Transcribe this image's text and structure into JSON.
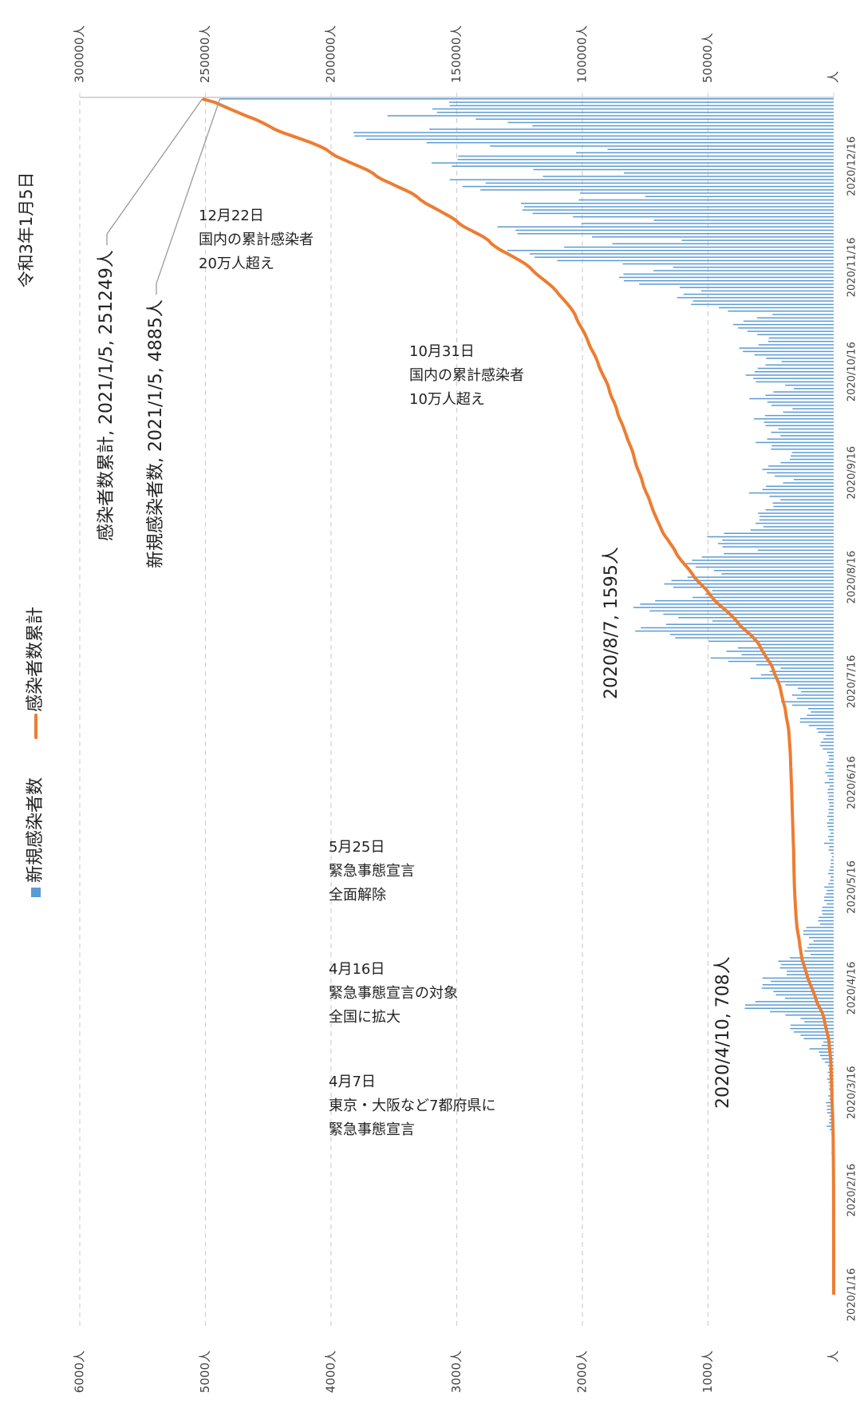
{
  "chart_data": {
    "type": "bar-line",
    "title": "令和3年1月5日",
    "categories": [
      "2020/1/16",
      null,
      null,
      null,
      null,
      null,
      null,
      null,
      null,
      null,
      null,
      null,
      null,
      null,
      null,
      null,
      null,
      null,
      null,
      null,
      null,
      null,
      null,
      null,
      null,
      null,
      null,
      null,
      null,
      null,
      null,
      "2020/2/16",
      null,
      null,
      null,
      null,
      null,
      null,
      null,
      null,
      null,
      null,
      null,
      null,
      null,
      null,
      null,
      null,
      null,
      null,
      null,
      null,
      null,
      null,
      null,
      null,
      null,
      null,
      null,
      null,
      "2020/3/16",
      null,
      null,
      null,
      null,
      null,
      null,
      null,
      null,
      null,
      null,
      null,
      null,
      null,
      null,
      null,
      null,
      null,
      null,
      null,
      null,
      null,
      null,
      null,
      null,
      null,
      null,
      null,
      null,
      null,
      null,
      "2020/4/16",
      null,
      null,
      null,
      null,
      null,
      null,
      null,
      null,
      null,
      null,
      null,
      null,
      null,
      null,
      null,
      null,
      null,
      null,
      null,
      null,
      null,
      null,
      null,
      null,
      null,
      null,
      null,
      null,
      null,
      "2020/5/16",
      null,
      null,
      null,
      null,
      null,
      null,
      null,
      null,
      null,
      null,
      null,
      null,
      null,
      null,
      null,
      null,
      null,
      null,
      null,
      null,
      null,
      null,
      null,
      null,
      null,
      null,
      null,
      null,
      null,
      null,
      "2020/6/16",
      null,
      null,
      null,
      null,
      null,
      null,
      null,
      null,
      null,
      null,
      null,
      null,
      null,
      null,
      null,
      null,
      null,
      null,
      null,
      null,
      null,
      null,
      null,
      null,
      null,
      null,
      null,
      null,
      null,
      "2020/7/16",
      null,
      null,
      null,
      null,
      null,
      null,
      null,
      null,
      null,
      null,
      null,
      null,
      null,
      null,
      null,
      null,
      null,
      null,
      null,
      null,
      null,
      null,
      null,
      null,
      null,
      null,
      null,
      null,
      null,
      null,
      "2020/8/16",
      null,
      null,
      null,
      null,
      null,
      null,
      null,
      null,
      null,
      null,
      null,
      null,
      null,
      null,
      null,
      null,
      null,
      null,
      null,
      null,
      null,
      null,
      null,
      null,
      null,
      null,
      null,
      null,
      null,
      null,
      "2020/9/16",
      null,
      null,
      null,
      null,
      null,
      null,
      null,
      null,
      null,
      null,
      null,
      null,
      null,
      null,
      null,
      null,
      null,
      null,
      null,
      null,
      null,
      null,
      null,
      null,
      null,
      null,
      null,
      null,
      null,
      "2020/10/16",
      null,
      null,
      null,
      null,
      null,
      null,
      null,
      null,
      null,
      null,
      null,
      null,
      null,
      null,
      null,
      null,
      null,
      null,
      null,
      null,
      null,
      null,
      null,
      null,
      null,
      null,
      null,
      null,
      null,
      null,
      "2020/11/16",
      null,
      null,
      null,
      null,
      null,
      null,
      null,
      null,
      null,
      null,
      null,
      null,
      null,
      null,
      null,
      null,
      null,
      null,
      null,
      null,
      null,
      null,
      null,
      null,
      null,
      null,
      null,
      null,
      null,
      "2020/12/16",
      null,
      null,
      null,
      null,
      null,
      null,
      null,
      null,
      null,
      null,
      null,
      null,
      null,
      null,
      null,
      null,
      null,
      null,
      null,
      null
    ],
    "series": [
      {
        "name": "新規感染者数",
        "color": "#5b9bd5",
        "values": [
          1,
          0,
          0,
          0,
          0,
          0,
          0,
          1,
          1,
          0,
          1,
          1,
          2,
          1,
          3,
          2,
          0,
          5,
          1,
          10,
          0,
          0,
          0,
          0,
          1,
          0,
          1,
          3,
          2,
          4,
          0,
          5,
          8,
          3,
          12,
          9,
          7,
          7,
          5,
          8,
          14,
          13,
          18,
          15,
          11,
          12,
          16,
          14,
          19,
          32,
          56,
          39,
          34,
          34,
          52,
          55,
          54,
          62,
          34,
          44,
          13,
          39,
          35,
          42,
          53,
          39,
          48,
          39,
          46,
          71,
          95,
          110,
          119,
          193,
          96,
          82,
          238,
          264,
          318,
          347,
          343,
          234,
          264,
          384,
          507,
          708,
          705,
          624,
          388,
          460,
          480,
          574,
          566,
          501,
          567,
          375,
          374,
          428,
          418,
          442,
          348,
          186,
          233,
          210,
          197,
          162,
          197,
          243,
          242,
          219,
          109,
          124,
          120,
          91,
          94,
          91,
          55,
          76,
          77,
          61,
          55,
          75,
          43,
          30,
          26,
          44,
          36,
          28,
          24,
          25,
          14,
          22,
          40,
          37,
          76,
          36,
          44,
          27,
          39,
          49,
          54,
          38,
          51,
          41,
          42,
          34,
          37,
          45,
          41,
          49,
          47,
          33,
          72,
          39,
          50,
          67,
          40,
          60,
          49,
          37,
          41,
          53,
          87,
          110,
          102,
          82,
          62,
          125,
          136,
          198,
          269,
          267,
          214,
          182,
          204,
          331,
          418,
          292,
          330,
          259,
          286,
          384,
          456,
          664,
          579,
          510,
          422,
          616,
          839,
          980,
          734,
          854,
          762,
          611,
          997,
          1262,
          1302,
          1580,
          1535,
          1333,
          965,
          1237,
          1356,
          1465,
          1595,
          1541,
          1421,
          1123,
          1020,
          968,
          1276,
          1349,
          1292,
          1164,
          893,
          952,
          1099,
          1174,
          1128,
          1050,
          875,
          604,
          886,
          921,
          887,
          1007,
          874,
          662,
          560,
          622,
          592,
          591,
          603,
          542,
          480,
          486,
          424,
          511,
          674,
          568,
          539,
          403,
          318,
          469,
          532,
          568,
          520,
          423,
          349,
          342,
          332,
          499,
          494,
          620,
          530,
          424,
          498,
          441,
          542,
          555,
          634,
          547,
          403,
          328,
          495,
          528,
          671,
          543,
          481,
          318,
          387,
          620,
          640,
          700,
          630,
          605,
          543,
          415,
          538,
          631,
          723,
          752,
          599,
          522,
          516,
          608,
          686,
          761,
          801,
          718,
          610,
          488,
          842,
          914,
          1135,
          1120,
          1247,
          1195,
          1055,
          1225,
          1548,
          1670,
          1708,
          1674,
          1434,
          1278,
          1679,
          2201,
          2380,
          2420,
          2598,
          2145,
          1762,
          1210,
          1923,
          2517,
          2532,
          2676,
          2008,
          1431,
          2075,
          2397,
          2478,
          2464,
          2489,
          2030,
          1501,
          2018,
          2812,
          2954,
          2771,
          3056,
          2315,
          1670,
          2390,
          3039,
          3200,
          2994,
          2988,
          2050,
          1800,
          2735,
          3240,
          3722,
          3814,
          3822,
          3218,
          2399,
          2594,
          2848,
          3551,
          3157,
          3194,
          3056,
          3060,
          4885
        ],
        "value_labels": {
          "85": "2020/4/10, 708人",
          "204": "2020/8/7, 1595人",
          "355": "新規感染者数, 2021/1/5, 4885人"
        }
      },
      {
        "name": "感染者数累計",
        "color": "#ed7d31",
        "axis": "y2",
        "values": [
          1,
          1,
          1,
          1,
          1,
          1,
          1,
          2,
          3,
          3,
          4,
          5,
          7,
          8,
          11,
          13,
          13,
          18,
          19,
          29,
          29,
          29,
          29,
          29,
          30,
          30,
          31,
          34,
          36,
          40,
          40,
          45,
          53,
          56,
          68,
          77,
          84,
          91,
          96,
          104,
          118,
          131,
          149,
          164,
          175,
          187,
          203,
          217,
          236,
          268,
          324,
          363,
          397,
          431,
          483,
          538,
          592,
          654,
          688,
          732,
          745,
          784,
          819,
          861,
          914,
          953,
          1001,
          1040,
          1086,
          1157,
          1252,
          1362,
          1481,
          1674,
          1770,
          1852,
          2090,
          2354,
          2672,
          3019,
          3362,
          3596,
          3860,
          4244,
          4751,
          5459,
          6164,
          6788,
          7176,
          7636,
          8116,
          8690,
          9256,
          9757,
          10324,
          10699,
          11073,
          11501,
          11919,
          12361,
          12709,
          12895,
          13128,
          13338,
          13535,
          13697,
          13894,
          14137,
          14379,
          14598,
          14707,
          14831,
          14951,
          15042,
          15136,
          15227,
          15282,
          15358,
          15435,
          15496,
          15551,
          15626,
          15669,
          15699,
          15725,
          15769,
          15805,
          15833,
          15857,
          15882,
          15896,
          15918,
          15958,
          15995,
          16071,
          16107,
          16151,
          16178,
          16217,
          16266,
          16320,
          16358,
          16409,
          16450,
          16492,
          16526,
          16563,
          16608,
          16649,
          16698,
          16745,
          16778,
          16850,
          16889,
          16939,
          17006,
          17046,
          17106,
          17155,
          17192,
          17233,
          17286,
          17373,
          17483,
          17585,
          17667,
          17729,
          17854,
          17990,
          18188,
          18457,
          18724,
          18938,
          19120,
          19324,
          19655,
          20073,
          20365,
          20695,
          20954,
          21240,
          21624,
          22080,
          22744,
          23323,
          23833,
          24255,
          24871,
          25710,
          26690,
          27424,
          28278,
          29040,
          29651,
          30648,
          31910,
          33212,
          34792,
          36327,
          37660,
          38625,
          39862,
          41218,
          42683,
          44278,
          45819,
          47240,
          48363,
          49383,
          50351,
          51627,
          52976,
          54268,
          55432,
          56325,
          57277,
          58376,
          59550,
          60678,
          61728,
          62603,
          63207,
          64093,
          65014,
          65901,
          66908,
          67782,
          68444,
          69004,
          69626,
          70218,
          70809,
          71412,
          71954,
          72434,
          72920,
          73344,
          73855,
          74529,
          75097,
          75636,
          76039,
          76357,
          76826,
          77358,
          77926,
          78446,
          78869,
          79218,
          79560,
          79892,
          80391,
          80885,
          81505,
          82035,
          82459,
          82957,
          83398,
          83940,
          84495,
          85129,
          85676,
          86079,
          86407,
          86902,
          87430,
          88101,
          88644,
          89125,
          89443,
          89830,
          90450,
          91090,
          91790,
          92420,
          93025,
          93568,
          93983,
          94521,
          95152,
          95875,
          96627,
          97226,
          97748,
          98264,
          98872,
          99558,
          100319,
          101120,
          101838,
          102448,
          102936,
          103778,
          104692,
          105827,
          106947,
          108194,
          109389,
          110444,
          111669,
          113217,
          114887,
          116595,
          118269,
          119703,
          120981,
          122660,
          124861,
          127241,
          129661,
          132259,
          134404,
          136166,
          137376,
          139299,
          141816,
          144348,
          147024,
          149032,
          150463,
          152538,
          154935,
          157413,
          159877,
          162366,
          164396,
          165897,
          167915,
          170727,
          173681,
          176452,
          179508,
          181823,
          183493,
          185883,
          188922,
          192122,
          195116,
          198104,
          200154,
          201954,
          204689,
          207929,
          211651,
          215465,
          219287,
          222505,
          224904,
          227498,
          230346,
          233897,
          237054,
          240248,
          243304,
          246364,
          251249
        ],
        "value_labels": {
          "355": "感染者数累計, 2021/1/5, 251249人"
        }
      }
    ],
    "ylim": [
      0,
      6000
    ],
    "yticks": [
      {
        "value": 0,
        "label": "人"
      },
      {
        "value": 1000,
        "label": "1000人"
      },
      {
        "value": 2000,
        "label": "2000人"
      },
      {
        "value": 3000,
        "label": "3000人"
      },
      {
        "value": 4000,
        "label": "4000人"
      },
      {
        "value": 5000,
        "label": "5000人"
      },
      {
        "value": 6000,
        "label": "6000人"
      }
    ],
    "y2lim": [
      0,
      300000
    ],
    "y2ticks": [
      {
        "value": 0,
        "label": "人"
      },
      {
        "value": 50000,
        "label": "50000人"
      },
      {
        "value": 100000,
        "label": "100000人"
      },
      {
        "value": 150000,
        "label": "150000人"
      },
      {
        "value": 200000,
        "label": "200000人"
      },
      {
        "value": 250000,
        "label": "250000人"
      },
      {
        "value": 300000,
        "label": "300000人"
      }
    ],
    "grid": true,
    "annotations": [
      [
        "12月22日",
        "国内の累計感染者",
        "20万人超え"
      ],
      [
        "10月31日",
        "国内の累計感染者",
        "10万人超え"
      ],
      [
        "5月25日",
        "緊急事態宣言",
        "全面解除"
      ],
      [
        "4月16日",
        "緊急事態宣言の対象",
        "全国に拡大"
      ],
      [
        "4月7日",
        "東京・大阪など7都府県に",
        "緊急事態宣言"
      ]
    ]
  }
}
